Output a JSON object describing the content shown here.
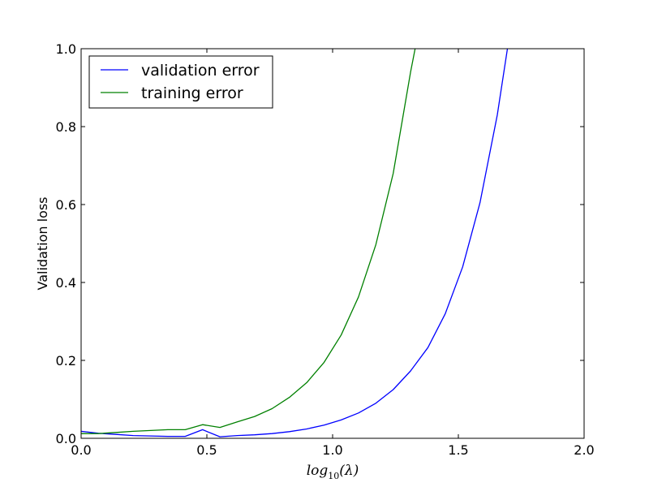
{
  "chart_data": {
    "type": "line",
    "title": "",
    "xlabel": "log10(λ)",
    "xlabel_parts": {
      "base": "log",
      "subscript": "10",
      "argument": "(λ)"
    },
    "ylabel": "Validation loss",
    "xlim": [
      0.0,
      2.0
    ],
    "ylim": [
      0.0,
      1.0
    ],
    "x_ticks": [
      "0.0",
      "0.5",
      "1.0",
      "1.5",
      "2.0"
    ],
    "y_ticks": [
      "0.0",
      "0.2",
      "0.4",
      "0.6",
      "0.8",
      "1.0"
    ],
    "grid": false,
    "legend_position": "top-left",
    "series": [
      {
        "name": "validation error",
        "color": "#0000ff",
        "x": [
          0.0,
          0.069,
          0.138,
          0.207,
          0.276,
          0.345,
          0.414,
          0.483,
          0.552,
          0.621,
          0.69,
          0.759,
          0.828,
          0.897,
          0.966,
          1.034,
          1.103,
          1.172,
          1.241,
          1.31,
          1.379,
          1.448,
          1.517,
          1.586,
          1.655,
          1.695
        ],
        "y": [
          0.018,
          0.013,
          0.01,
          0.007,
          0.006,
          0.005,
          0.005,
          0.022,
          0.004,
          0.007,
          0.009,
          0.012,
          0.017,
          0.024,
          0.034,
          0.047,
          0.065,
          0.09,
          0.125,
          0.173,
          0.233,
          0.32,
          0.44,
          0.605,
          0.83,
          1.0
        ]
      },
      {
        "name": "training error",
        "color": "#008000",
        "x": [
          0.0,
          0.069,
          0.138,
          0.207,
          0.276,
          0.345,
          0.414,
          0.483,
          0.552,
          0.621,
          0.69,
          0.759,
          0.828,
          0.897,
          0.966,
          1.034,
          1.103,
          1.172,
          1.241,
          1.31,
          1.328
        ],
        "y": [
          0.012,
          0.012,
          0.015,
          0.018,
          0.02,
          0.022,
          0.022,
          0.035,
          0.028,
          0.042,
          0.056,
          0.076,
          0.105,
          0.143,
          0.195,
          0.265,
          0.363,
          0.497,
          0.68,
          0.94,
          1.0
        ]
      }
    ]
  }
}
